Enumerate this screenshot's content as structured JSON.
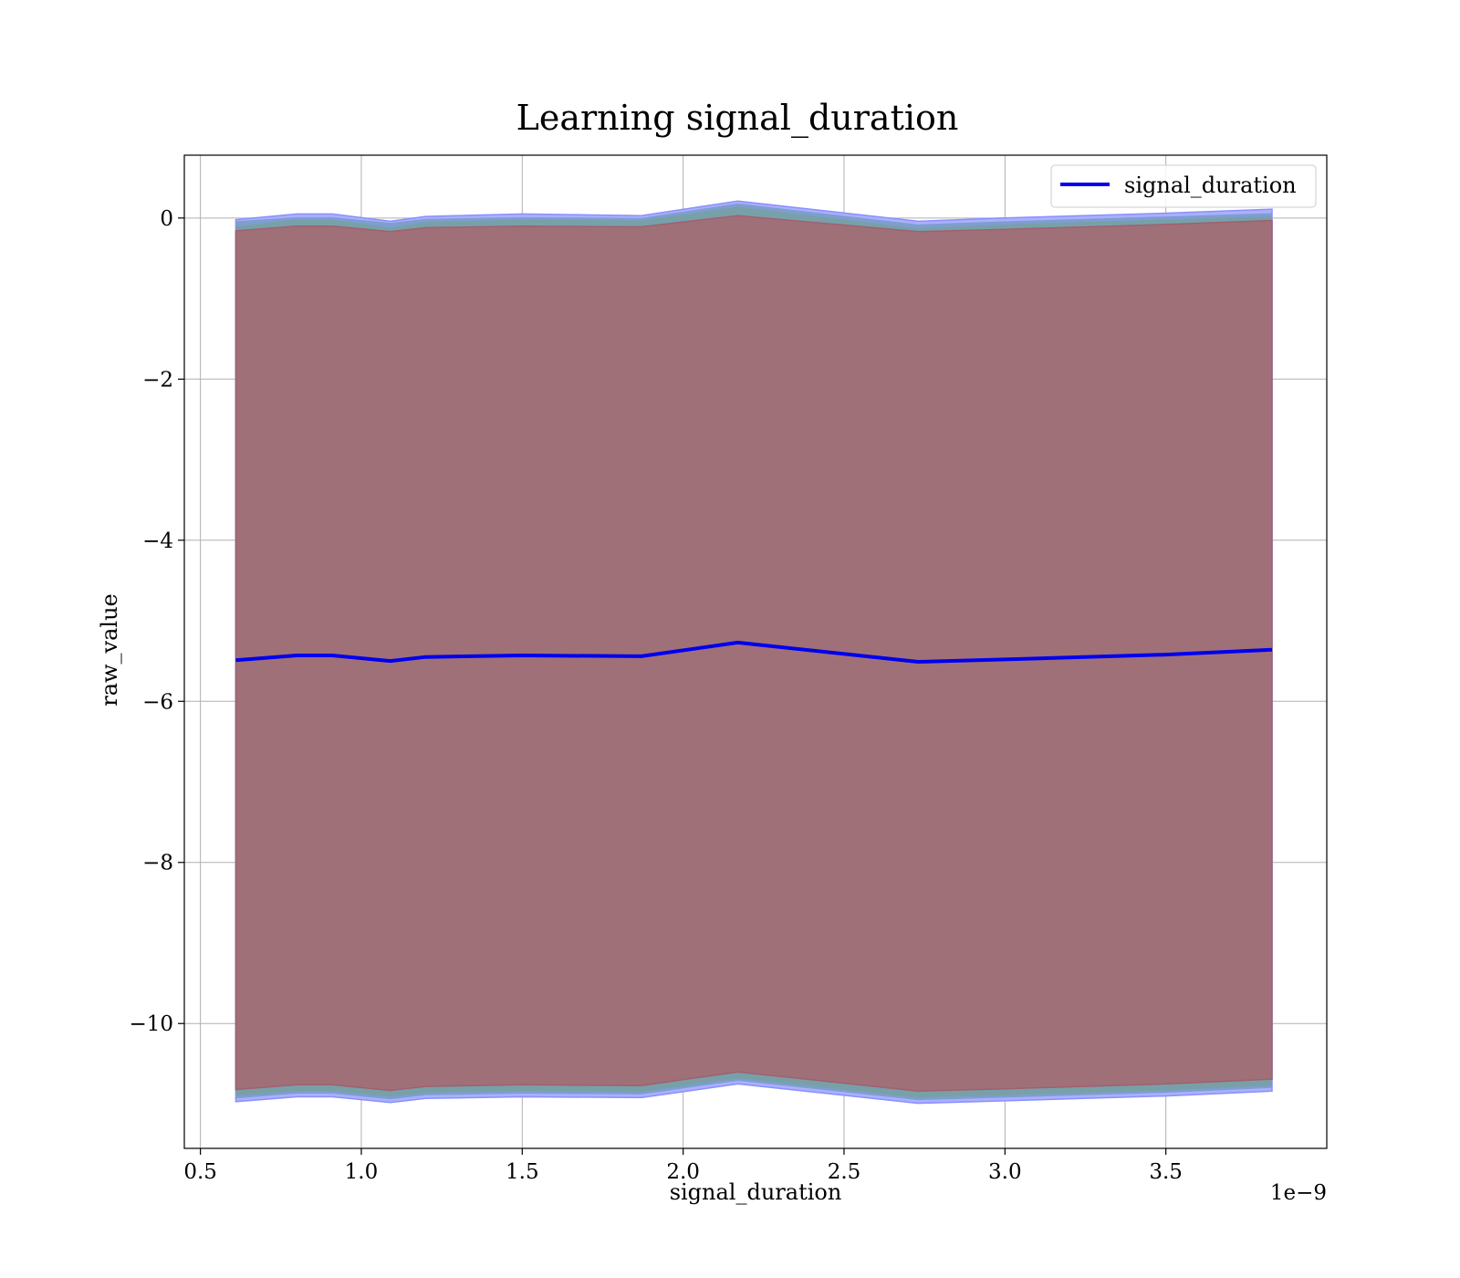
{
  "chart_data": {
    "type": "line",
    "title": "Learning signal_duration",
    "xlabel": "signal_duration",
    "ylabel": "raw_value",
    "x_offset_label": "1e−9",
    "xlim": [
      0.45,
      4.0
    ],
    "ylim": [
      -11.55,
      0.78
    ],
    "grid": true,
    "legend_position": "top-right",
    "x_ticks": [
      0.5,
      1.0,
      1.5,
      2.0,
      2.5,
      3.0,
      3.5
    ],
    "x_tick_labels": [
      "0.5",
      "1.0",
      "1.5",
      "2.0",
      "2.5",
      "3.0",
      "3.5"
    ],
    "y_ticks": [
      0,
      -2,
      -4,
      -6,
      -8,
      -10
    ],
    "y_tick_labels": [
      "0",
      "−2",
      "−4",
      "−6",
      "−8",
      "−10"
    ],
    "x": [
      0.61,
      0.8,
      0.91,
      1.09,
      1.2,
      1.5,
      1.87,
      2.17,
      2.73,
      3.0,
      3.5,
      3.83
    ],
    "series": [
      {
        "name": "signal_duration",
        "values": [
          -5.49,
          -5.43,
          -5.43,
          -5.5,
          -5.45,
          -5.43,
          -5.44,
          -5.27,
          -5.51,
          -5.48,
          -5.42,
          -5.36
        ]
      }
    ],
    "bands": [
      {
        "upper": [
          -0.02,
          0.05,
          0.05,
          -0.04,
          0.02,
          0.05,
          0.03,
          0.21,
          -0.04,
          0.0,
          0.06,
          0.11
        ],
        "lower": [
          -10.97,
          -10.91,
          -10.91,
          -10.98,
          -10.93,
          -10.91,
          -10.92,
          -10.75,
          -10.99,
          -10.96,
          -10.9,
          -10.84
        ]
      },
      {
        "upper": [
          -0.04,
          0.01,
          0.01,
          -0.06,
          -0.01,
          0.01,
          0.0,
          0.18,
          -0.08,
          -0.04,
          0.02,
          0.06
        ],
        "lower": [
          -10.93,
          -10.87,
          -10.87,
          -10.94,
          -10.89,
          -10.87,
          -10.88,
          -10.71,
          -10.95,
          -10.92,
          -10.86,
          -10.8
        ]
      },
      {
        "upper": [
          -0.1,
          -0.02,
          -0.02,
          -0.12,
          -0.05,
          -0.02,
          -0.03,
          0.14,
          -0.13,
          -0.08,
          -0.02,
          0.02
        ],
        "lower": [
          -10.9,
          -10.84,
          -10.84,
          -10.91,
          -10.86,
          -10.84,
          -10.85,
          -10.68,
          -10.92,
          -10.89,
          -10.83,
          -10.77
        ]
      },
      {
        "upper": [
          -0.16,
          -0.1,
          -0.1,
          -0.17,
          -0.12,
          -0.1,
          -0.11,
          0.03,
          -0.17,
          -0.14,
          -0.08,
          -0.03
        ],
        "lower": [
          -10.82,
          -10.76,
          -10.76,
          -10.83,
          -10.78,
          -10.76,
          -10.77,
          -10.6,
          -10.84,
          -10.81,
          -10.75,
          -10.69
        ]
      }
    ],
    "colors": {
      "line": "#0000ee",
      "band_outer": "#aab0ff",
      "band_mid": "#7e9ecf",
      "band_teal": "#78a0a8",
      "band_inner": "#a07078",
      "grid": "#b0b0b0"
    }
  }
}
